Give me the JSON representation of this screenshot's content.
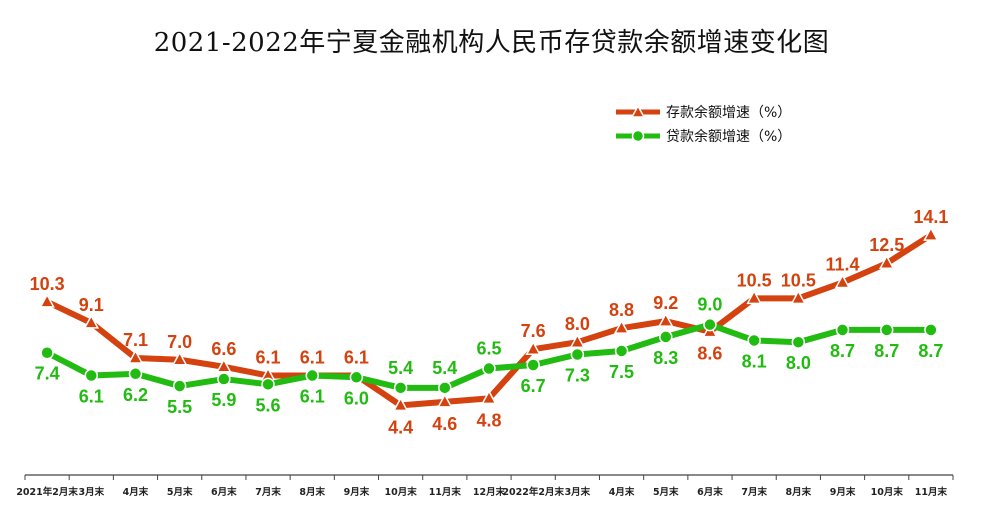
{
  "chart_data": {
    "type": "line",
    "title": "2021-2022年宁夏金融机构人民币存贷款余额增速变化图",
    "categories": [
      "2021年2月末",
      "3月末",
      "4月末",
      "5月末",
      "6月末",
      "7月末",
      "8月末",
      "9月末",
      "10月末",
      "11月末",
      "12月末",
      "2022年2月末",
      "3月末",
      "4月末",
      "5月末",
      "6月末",
      "7月末",
      "8月末",
      "9月末",
      "10月末",
      "11月末"
    ],
    "series": [
      {
        "name": "存款余额增速（%）",
        "color": "#d4420f",
        "marker": "triangle",
        "values": [
          10.3,
          9.1,
          7.1,
          7.0,
          6.6,
          6.1,
          6.1,
          6.1,
          4.4,
          4.6,
          4.8,
          7.6,
          8.0,
          8.8,
          9.2,
          8.6,
          10.5,
          10.5,
          11.4,
          12.5,
          14.1
        ]
      },
      {
        "name": "贷款余额增速（%）",
        "color": "#22bb11",
        "marker": "circle",
        "values": [
          7.4,
          6.1,
          6.2,
          5.5,
          5.9,
          5.6,
          6.1,
          6.0,
          5.4,
          5.4,
          6.5,
          6.7,
          7.3,
          7.5,
          8.3,
          9.0,
          8.1,
          8.0,
          8.7,
          8.7,
          8.7
        ]
      }
    ],
    "xlabel": "",
    "ylabel": "",
    "ylim": [
      0,
      16
    ],
    "grid": false,
    "legend_position": "top-right"
  }
}
